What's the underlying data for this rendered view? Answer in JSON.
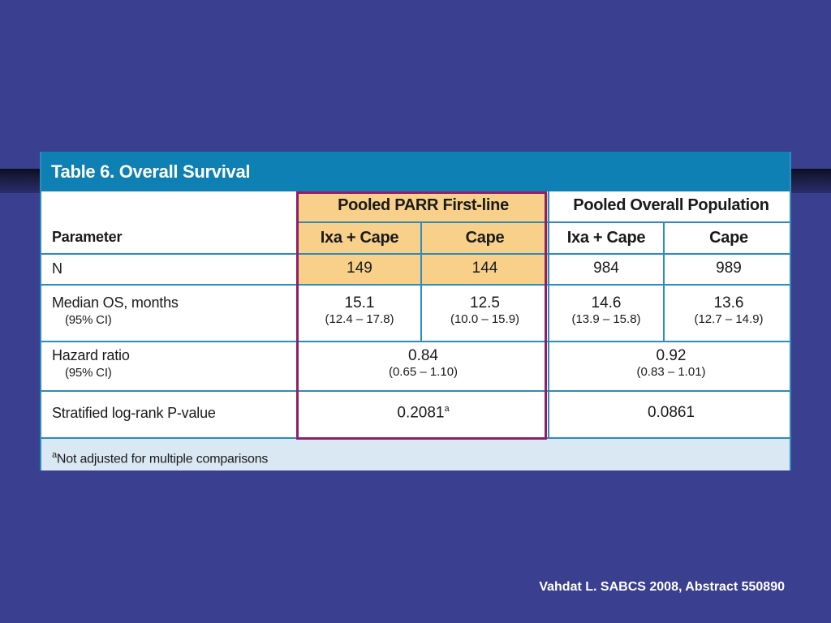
{
  "table": {
    "title": "Table 6. Overall Survival",
    "header": {
      "parameter_label": "Parameter",
      "group1_label": "Pooled PARR First-line",
      "group2_label": "Pooled Overall Population",
      "col_ixa_cape": "Ixa + Cape",
      "col_cape": "Cape"
    },
    "rows": {
      "n": {
        "label": "N",
        "g1_ixa": "149",
        "g1_cape": "144",
        "g2_ixa": "984",
        "g2_cape": "989"
      },
      "median_os": {
        "label": "Median OS, months",
        "sublabel": "(95% CI)",
        "g1_ixa": "15.1",
        "g1_ixa_ci": "(12.4 – 17.8)",
        "g1_cape": "12.5",
        "g1_cape_ci": "(10.0 – 15.9)",
        "g2_ixa": "14.6",
        "g2_ixa_ci": "(13.9 – 15.8)",
        "g2_cape": "13.6",
        "g2_cape_ci": "(12.7 – 14.9)"
      },
      "hazard_ratio": {
        "label": "Hazard ratio",
        "sublabel": "(95% CI)",
        "g1": "0.84",
        "g1_ci": "(0.65 – 1.10)",
        "g2": "0.92",
        "g2_ci": "(0.83 – 1.01)"
      },
      "pvalue": {
        "label": "Stratified log-rank P-value",
        "g1": "0.2081",
        "g1_sup": "a",
        "g2": "0.0861"
      }
    },
    "footnote": {
      "marker": "a",
      "text": "Not adjusted for multiple comparisons"
    }
  },
  "citation": "Vahdat L. SABCS 2008, Abstract 550890",
  "colors": {
    "background": "#3a3f8f",
    "title_bar": "#0f80b3",
    "grid_lines": "#2a8cbf",
    "highlight_fill": "#f8d08a",
    "highlight_frame": "#8f1f6a",
    "footnote_bg": "#d9e8f3"
  }
}
